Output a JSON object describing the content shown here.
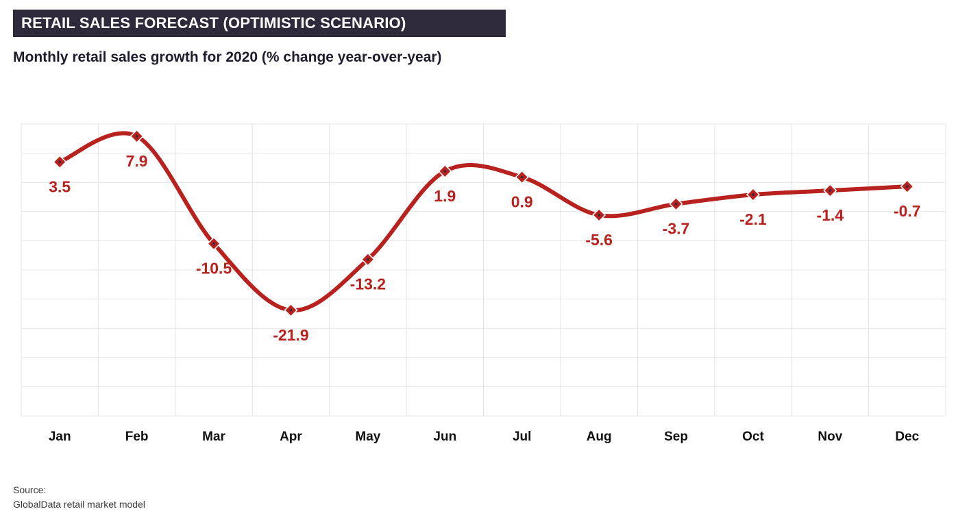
{
  "header": {
    "title": "RETAIL SALES FORECAST (OPTIMISTIC SCENARIO)",
    "subtitle": "Monthly retail sales growth for 2020 (% change year-over-year)"
  },
  "footer": {
    "source_label": "Source:",
    "source_text": "GlobalData retail market model"
  },
  "colors": {
    "line": "#b8221e",
    "label": "#b8221e",
    "grid": "#e4e4e4",
    "title_bg": "#2f2a3b",
    "marker_dot": "#2f2a3b"
  },
  "chart_data": {
    "type": "line",
    "title": "RETAIL SALES FORECAST (OPTIMISTIC SCENARIO)",
    "subtitle": "Monthly retail sales growth for 2020 (% change year-over-year)",
    "categories": [
      "Jan",
      "Feb",
      "Mar",
      "Apr",
      "May",
      "Jun",
      "Jul",
      "Aug",
      "Sep",
      "Oct",
      "Nov",
      "Dec"
    ],
    "series": [
      {
        "values": [
          3.5,
          7.9,
          -10.5,
          -21.9,
          -13.2,
          1.9,
          0.9,
          -5.6,
          -3.7,
          -2.1,
          -1.4,
          -0.7
        ]
      }
    ],
    "data_labels": [
      "3.5",
      "7.9",
      "-10.5",
      "-21.9",
      "-13.2",
      "1.9",
      "0.9",
      "-5.6",
      "-3.7",
      "-2.1",
      "-1.4",
      "-0.7"
    ],
    "xlabel": "",
    "ylabel": "",
    "ylim": [
      -40,
      10
    ],
    "grid": true,
    "legend": "none",
    "smooth": true
  }
}
